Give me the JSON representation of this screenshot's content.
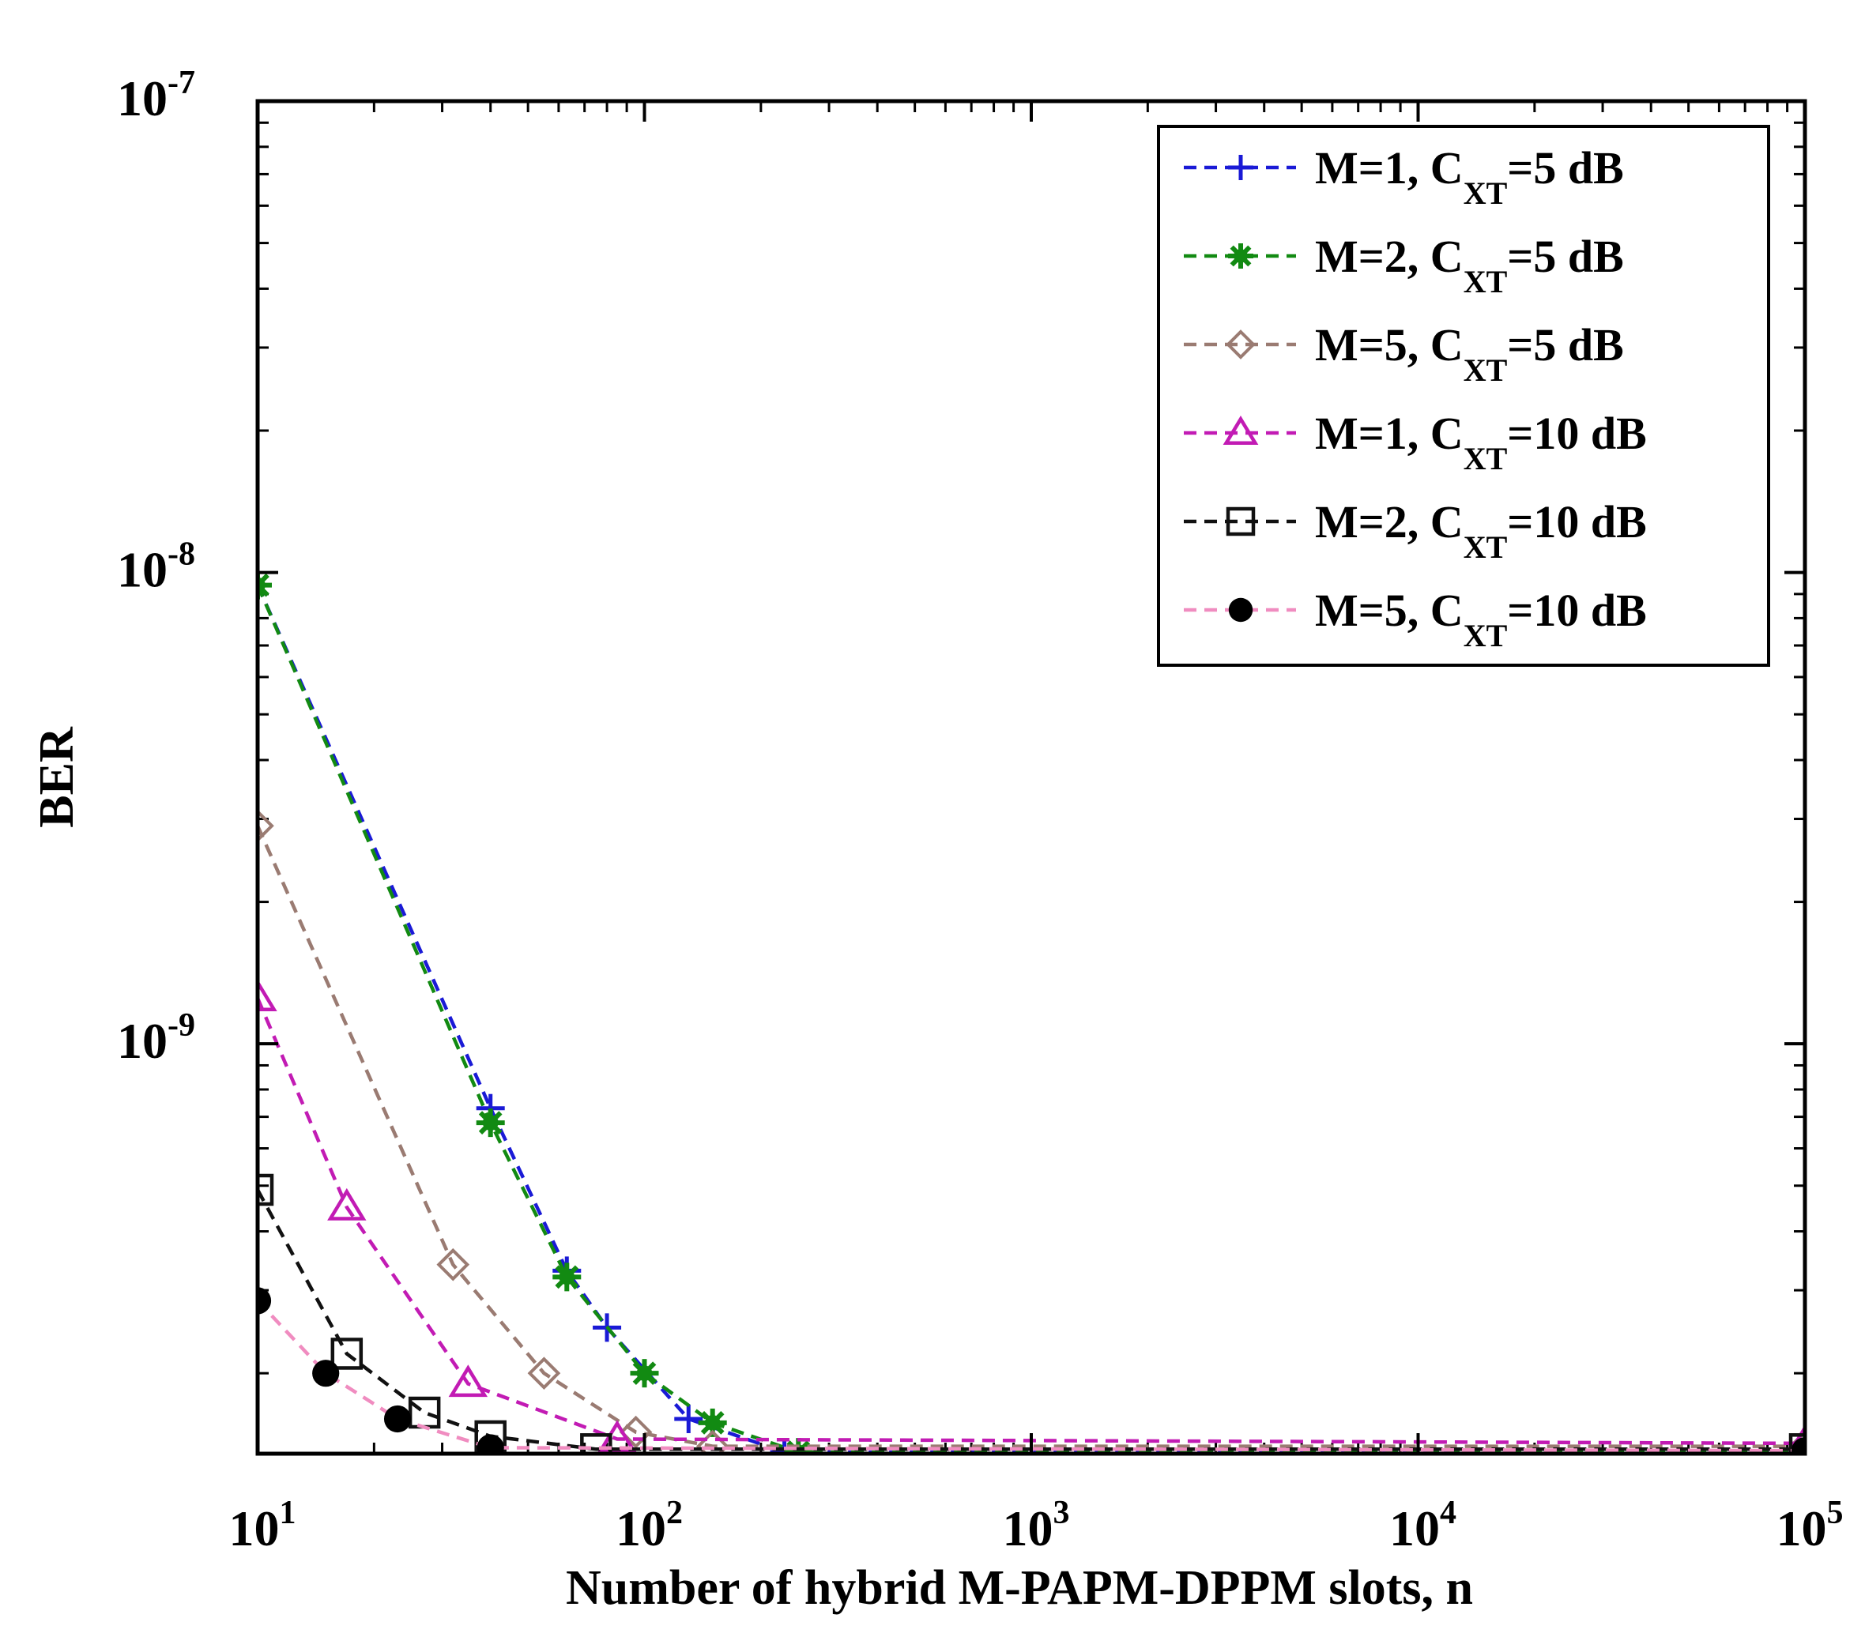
{
  "chart_data": {
    "type": "line",
    "title": "",
    "xlabel": "Number of hybrid M-PAPM-DPPM slots, n",
    "ylabel": "BER",
    "xscale": "log",
    "yscale": "log",
    "xlim": [
      10,
      100000
    ],
    "ylim": [
      1.35e-10,
      1e-07
    ],
    "x_ticks": [
      {
        "base": "10",
        "exp": "1",
        "value": 10
      },
      {
        "base": "10",
        "exp": "2",
        "value": 100
      },
      {
        "base": "10",
        "exp": "3",
        "value": 1000
      },
      {
        "base": "10",
        "exp": "4",
        "value": 10000
      },
      {
        "base": "10",
        "exp": "5",
        "value": 100000
      }
    ],
    "y_ticks": [
      {
        "base": "10",
        "exp": "-7",
        "value": 1e-07
      },
      {
        "base": "10",
        "exp": "-8",
        "value": 1e-08
      },
      {
        "base": "10",
        "exp": "-9",
        "value": 1e-09
      }
    ],
    "grid": false,
    "legend_position": "top-right",
    "series": [
      {
        "name": "M=1, C_XT=5 dB",
        "label": {
          "main": "M=1, C",
          "sub": "XT",
          "tail": "=5 dB"
        },
        "color": "#1a1ad6",
        "marker": "plus",
        "x": [
          10,
          40,
          63,
          80,
          130,
          230,
          100000
        ],
        "y": [
          9.4e-09,
          7.3e-10,
          3.3e-10,
          2.5e-10,
          1.6e-10,
          1.36e-10,
          1.36e-10
        ]
      },
      {
        "name": "M=2, C_XT=5 dB",
        "label": {
          "main": "M=2, C",
          "sub": "XT",
          "tail": "=5 dB"
        },
        "color": "#128a12",
        "marker": "star",
        "x": [
          10,
          40,
          63,
          100,
          150,
          250,
          100000
        ],
        "y": [
          9.4e-09,
          6.8e-10,
          3.2e-10,
          2e-10,
          1.57e-10,
          1.36e-10,
          1.36e-10
        ]
      },
      {
        "name": "M=5, C_XT=5 dB",
        "label": {
          "main": "M=5, C",
          "sub": "XT",
          "tail": "=5 dB"
        },
        "color": "#9a7b72",
        "marker": "diamond",
        "x": [
          10,
          32,
          55,
          95,
          150,
          100000
        ],
        "y": [
          2.9e-09,
          3.4e-10,
          2e-10,
          1.5e-10,
          1.4e-10,
          1.4e-10
        ]
      },
      {
        "name": "M=1, C_XT=10 dB",
        "label": {
          "main": "M=1, C",
          "sub": "XT",
          "tail": "=10 dB"
        },
        "color": "#c21bb4",
        "marker": "triangle",
        "x": [
          10,
          17,
          35,
          85,
          100000
        ],
        "y": [
          1.25e-09,
          4.5e-10,
          1.9e-10,
          1.45e-10,
          1.42e-10
        ]
      },
      {
        "name": "M=2, C_XT=10 dB",
        "label": {
          "main": "M=2, C",
          "sub": "XT",
          "tail": "=10 dB"
        },
        "color": "#111111",
        "marker": "square",
        "x": [
          10,
          17,
          27,
          40,
          75,
          100000
        ],
        "y": [
          4.9e-10,
          2.2e-10,
          1.65e-10,
          1.47e-10,
          1.38e-10,
          1.38e-10
        ]
      },
      {
        "name": "M=5, C_XT=10 dB",
        "label": {
          "main": "M=5, C",
          "sub": "XT",
          "tail": "=10 dB"
        },
        "color": "#f08cc0",
        "marker": "circle",
        "x": [
          10,
          15,
          23,
          40,
          100000
        ],
        "y": [
          2.85e-10,
          2e-10,
          1.6e-10,
          1.39e-10,
          1.37e-10
        ]
      }
    ]
  }
}
